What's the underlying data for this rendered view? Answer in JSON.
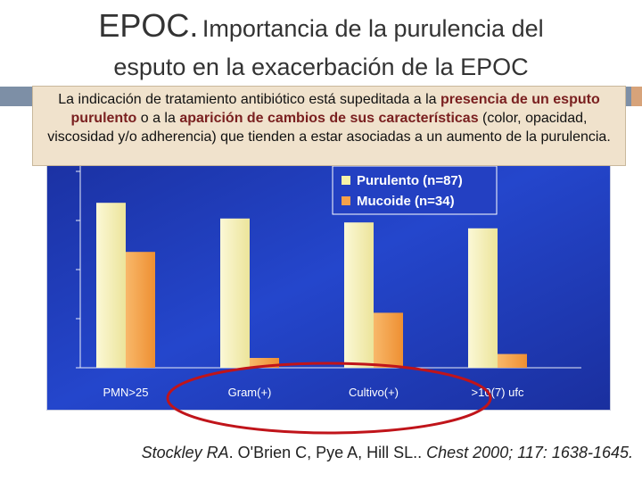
{
  "title": {
    "main": "EPOC.",
    "rest": "Importancia de la purulencia del",
    "line2": "esputo en la exacerbación de la EPOC"
  },
  "note": {
    "p1": "La indicación de tratamiento antibiótico está supeditada a la ",
    "h1": "presencia de un esputo purulento",
    "p2": " o a la ",
    "h2": "aparición de cambios de sus características",
    "p3": " (color, opacidad, viscosidad y/o adherencia) que tienden a estar asociadas a un aumento de la purulencia."
  },
  "citation": {
    "authors": "Stockley RA",
    "rest": ". O'Brien C, Pye A, Hill SL.. ",
    "journal": "Chest 2000; 117: 1638-1645."
  },
  "colors": {
    "background": "#1f3bbf",
    "purulento": "#f7f2a8",
    "mucoide": "#f5a14a",
    "highlight_ellipse": "#c0141a"
  },
  "chart_data": {
    "type": "bar",
    "categories": [
      "PMN>25",
      "Gram(+)",
      "Cultivo(+)",
      ">10(7) ufc"
    ],
    "series": [
      {
        "name": "Purulento (n=87)",
        "values": [
          84,
          76,
          74,
          71
        ]
      },
      {
        "name": "Mucoide (n=34)",
        "values": [
          59,
          5,
          28,
          7
        ]
      }
    ],
    "ylim": [
      0,
      100
    ],
    "legend": "top-right",
    "grid": false,
    "title": "",
    "xlabel": "",
    "ylabel": ""
  }
}
